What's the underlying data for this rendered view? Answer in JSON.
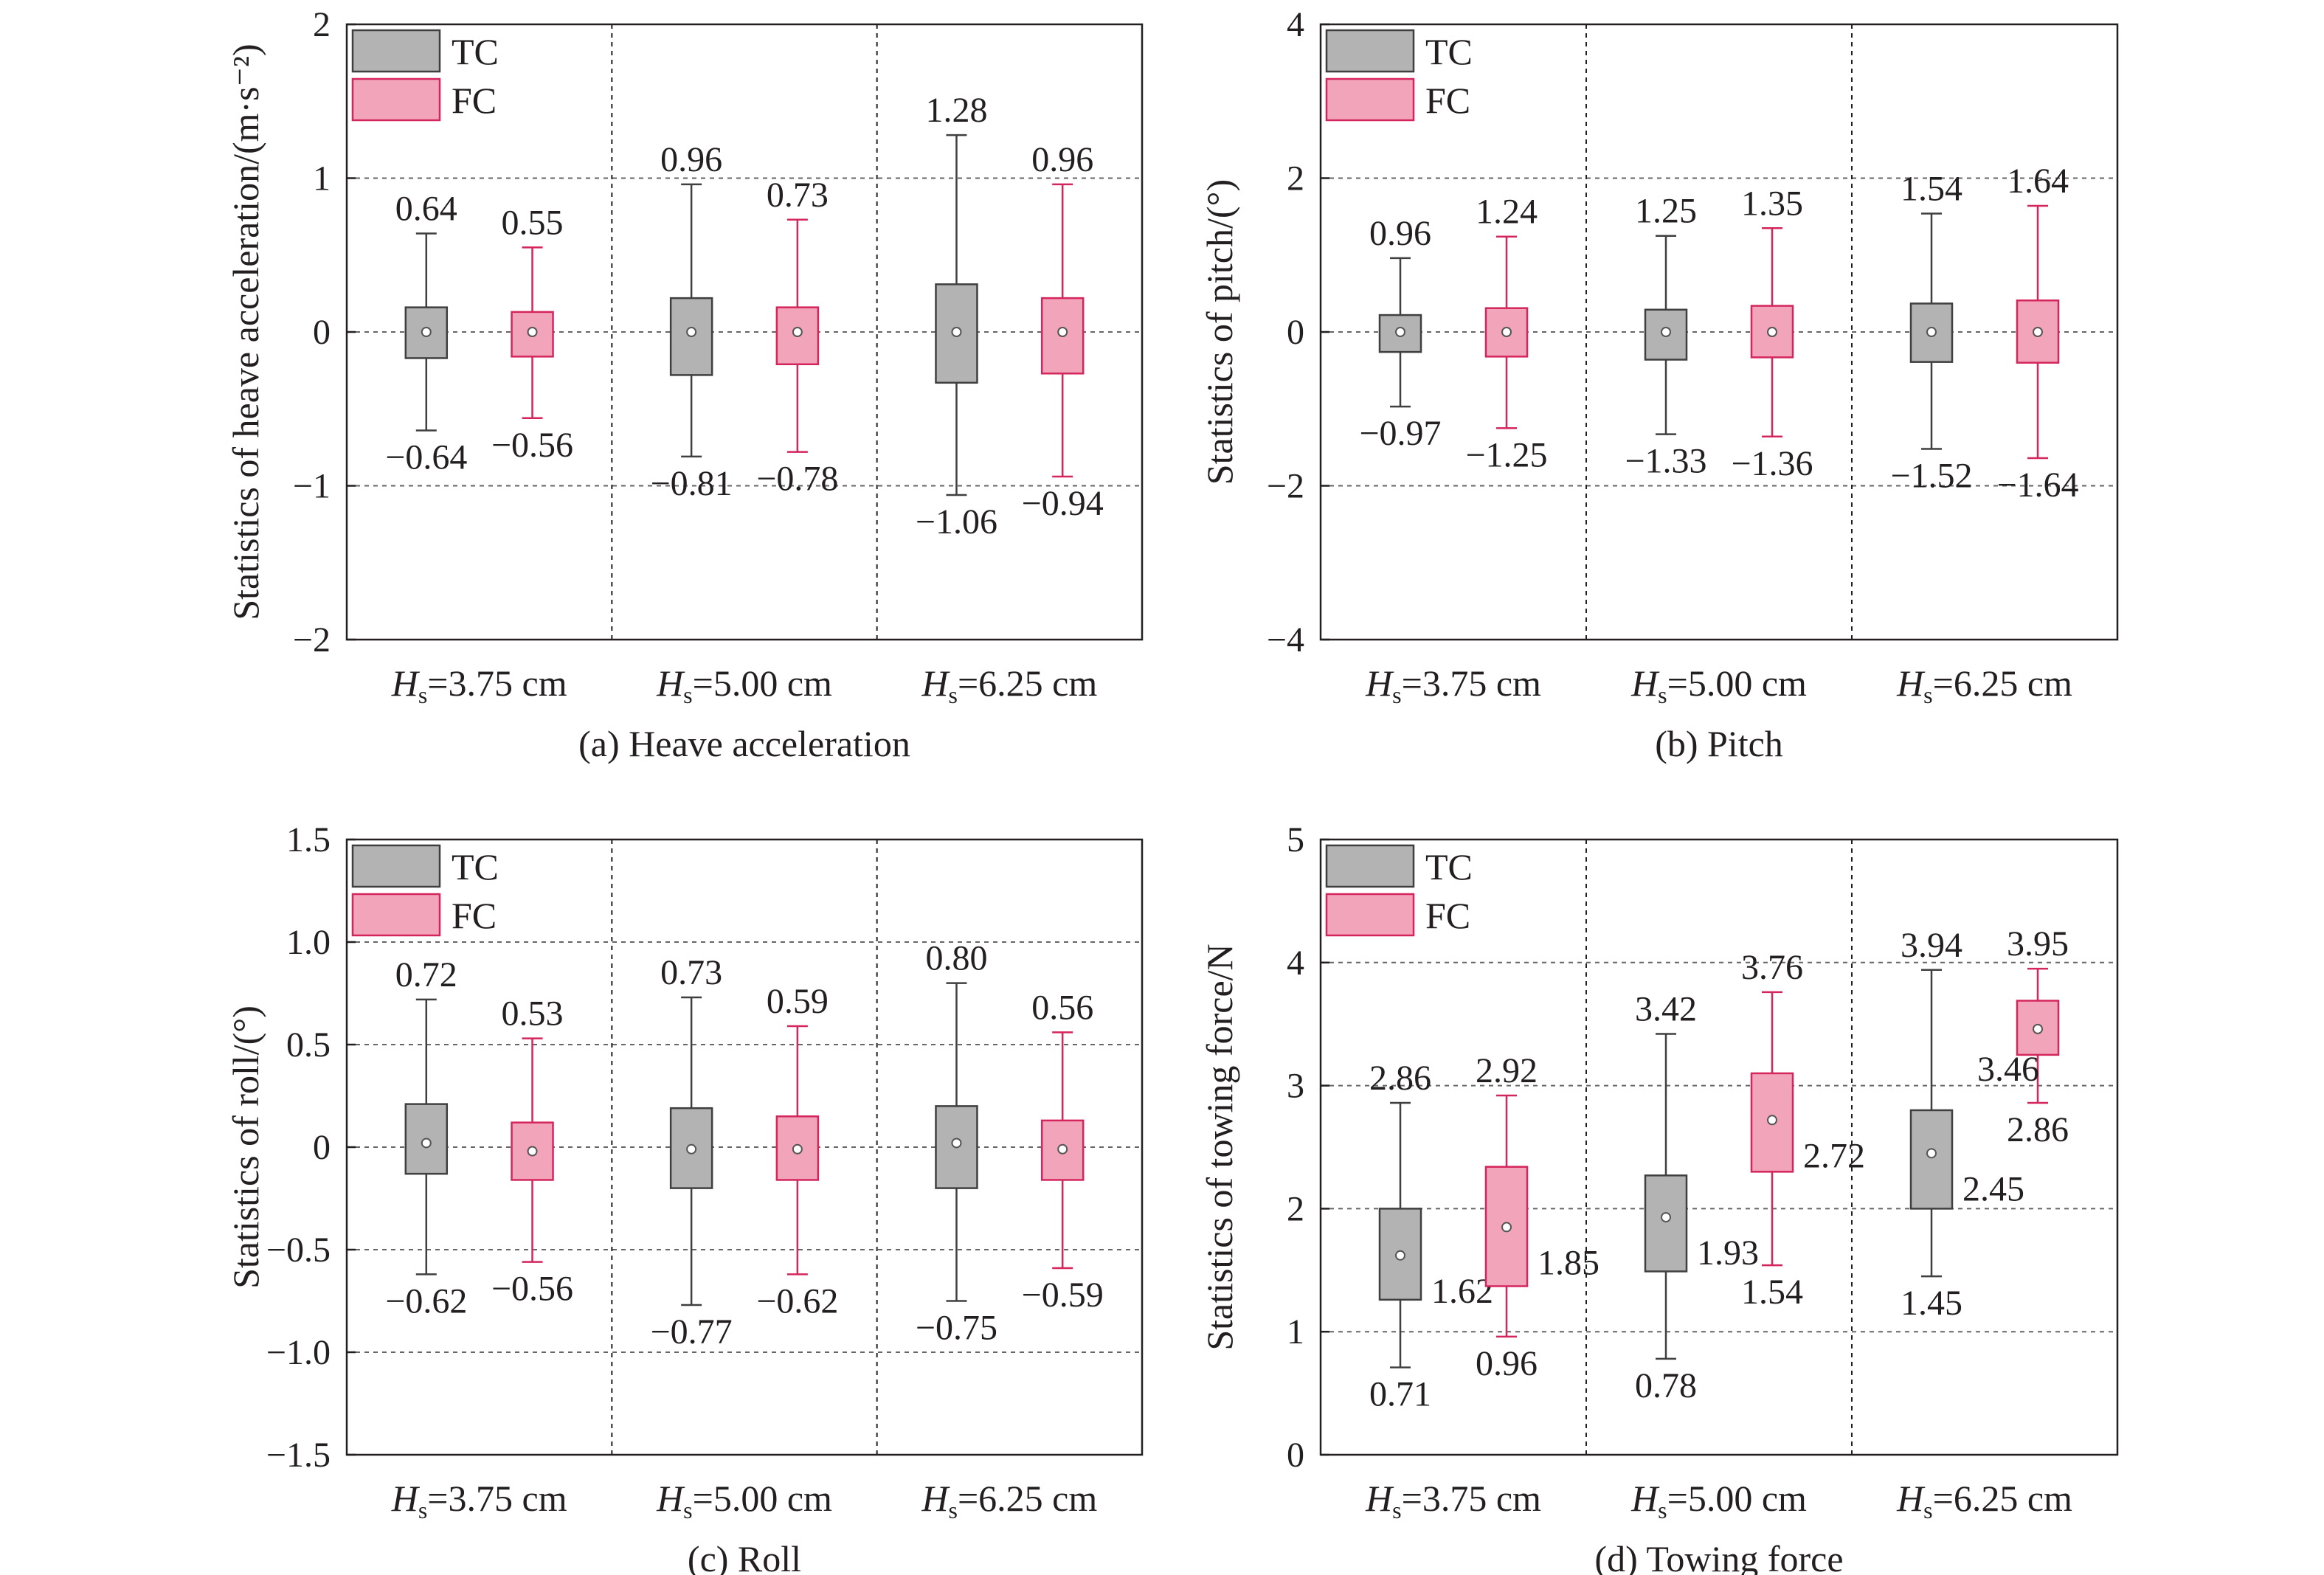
{
  "legend": {
    "tc": "TC",
    "fc": "FC"
  },
  "colors": {
    "tc_fill": "#b3b3b3",
    "tc_stroke": "#3f3f3f",
    "fc_fill": "#f2a4bb",
    "fc_stroke": "#d4255c",
    "axis": "#231f20"
  },
  "x_tick_labels": [
    {
      "main": "H",
      "sub": "s",
      "rest": "=3.75 cm"
    },
    {
      "main": "H",
      "sub": "s",
      "rest": "=5.00 cm"
    },
    {
      "main": "H",
      "sub": "s",
      "rest": "=6.25 cm"
    }
  ],
  "chart_data": [
    {
      "type": "box",
      "caption": "(a) Heave acceleration",
      "ylabel": "Statistics of heave acceleration/(m·s⁻²)",
      "ylim": [
        -2,
        2
      ],
      "yticks": [
        "2",
        "1",
        "0",
        "−1",
        "−2"
      ],
      "ytick_values": [
        2,
        1,
        0,
        -1,
        -2
      ],
      "grid": "dashed",
      "legend_position": "top-left",
      "categories": [
        "Hs=3.75 cm",
        "Hs=5.00 cm",
        "Hs=6.25 cm"
      ],
      "series": [
        {
          "name": "TC",
          "boxes": [
            {
              "min": -0.64,
              "q1": -0.17,
              "median": 0,
              "q3": 0.16,
              "max": 0.64,
              "mean": 0,
              "max_label": "0.64",
              "min_label": "−0.64"
            },
            {
              "min": -0.81,
              "q1": -0.28,
              "median": 0,
              "q3": 0.22,
              "max": 0.96,
              "mean": 0,
              "max_label": "0.96",
              "min_label": "−0.81"
            },
            {
              "min": -1.06,
              "q1": -0.33,
              "median": 0,
              "q3": 0.31,
              "max": 1.28,
              "mean": 0,
              "max_label": "1.28",
              "min_label": "−1.06"
            }
          ]
        },
        {
          "name": "FC",
          "boxes": [
            {
              "min": -0.56,
              "q1": -0.16,
              "median": 0,
              "q3": 0.13,
              "max": 0.55,
              "mean": 0,
              "max_label": "0.55",
              "min_label": "−0.56"
            },
            {
              "min": -0.78,
              "q1": -0.21,
              "median": 0,
              "q3": 0.16,
              "max": 0.73,
              "mean": 0,
              "max_label": "0.73",
              "min_label": "−0.78"
            },
            {
              "min": -0.94,
              "q1": -0.27,
              "median": 0,
              "q3": 0.22,
              "max": 0.96,
              "mean": 0,
              "max_label": "0.96",
              "min_label": "−0.94"
            }
          ]
        }
      ]
    },
    {
      "type": "box",
      "caption": "(b) Pitch",
      "ylabel": "Statistics of pitch/(°)",
      "ylim": [
        -4,
        4
      ],
      "yticks": [
        "4",
        "2",
        "0",
        "−2",
        "−4"
      ],
      "ytick_values": [
        4,
        2,
        0,
        -2,
        -4
      ],
      "grid": "dashed",
      "legend_position": "top-left",
      "categories": [
        "Hs=3.75 cm",
        "Hs=5.00 cm",
        "Hs=6.25 cm"
      ],
      "series": [
        {
          "name": "TC",
          "boxes": [
            {
              "min": -0.97,
              "q1": -0.26,
              "median": 0,
              "q3": 0.22,
              "max": 0.96,
              "mean": 0,
              "max_label": "0.96",
              "min_label": "−0.97"
            },
            {
              "min": -1.33,
              "q1": -0.36,
              "median": 0,
              "q3": 0.29,
              "max": 1.25,
              "mean": 0,
              "max_label": "1.25",
              "min_label": "−1.33"
            },
            {
              "min": -1.52,
              "q1": -0.39,
              "median": 0,
              "q3": 0.37,
              "max": 1.54,
              "mean": 0,
              "max_label": "1.54",
              "min_label": "−1.52"
            }
          ]
        },
        {
          "name": "FC",
          "boxes": [
            {
              "min": -1.25,
              "q1": -0.32,
              "median": 0,
              "q3": 0.31,
              "max": 1.24,
              "mean": 0,
              "max_label": "1.24",
              "min_label": "−1.25"
            },
            {
              "min": -1.36,
              "q1": -0.33,
              "median": 0,
              "q3": 0.34,
              "max": 1.35,
              "mean": 0,
              "max_label": "1.35",
              "min_label": "−1.36"
            },
            {
              "min": -1.64,
              "q1": -0.4,
              "median": 0,
              "q3": 0.41,
              "max": 1.64,
              "mean": 0,
              "max_label": "1.64",
              "min_label": "−1.64"
            }
          ]
        }
      ]
    },
    {
      "type": "box",
      "caption": "(c) Roll",
      "ylabel": "Statistics of roll/(°)",
      "ylim": [
        -1.5,
        1.5
      ],
      "yticks": [
        "1.5",
        "1.0",
        "0.5",
        "0",
        "−0.5",
        "−1.0",
        "−1.5"
      ],
      "ytick_values": [
        1.5,
        1.0,
        0.5,
        0,
        -0.5,
        -1.0,
        -1.5
      ],
      "grid": "dashed",
      "legend_position": "top-left",
      "categories": [
        "Hs=3.75 cm",
        "Hs=5.00 cm",
        "Hs=6.25 cm"
      ],
      "series": [
        {
          "name": "TC",
          "boxes": [
            {
              "min": -0.62,
              "q1": -0.13,
              "median": 0,
              "q3": 0.21,
              "max": 0.72,
              "mean": 0.02,
              "max_label": "0.72",
              "min_label": "−0.62"
            },
            {
              "min": -0.77,
              "q1": -0.2,
              "median": 0,
              "q3": 0.19,
              "max": 0.73,
              "mean": -0.01,
              "max_label": "0.73",
              "min_label": "−0.77"
            },
            {
              "min": -0.75,
              "q1": -0.2,
              "median": 0,
              "q3": 0.2,
              "max": 0.8,
              "mean": 0.02,
              "max_label": "0.80",
              "min_label": "−0.75"
            }
          ]
        },
        {
          "name": "FC",
          "boxes": [
            {
              "min": -0.56,
              "q1": -0.16,
              "median": 0,
              "q3": 0.12,
              "max": 0.53,
              "mean": -0.02,
              "max_label": "0.53",
              "min_label": "−0.56"
            },
            {
              "min": -0.62,
              "q1": -0.16,
              "median": 0,
              "q3": 0.15,
              "max": 0.59,
              "mean": -0.01,
              "max_label": "0.59",
              "min_label": "−0.62"
            },
            {
              "min": -0.59,
              "q1": -0.16,
              "median": 0,
              "q3": 0.13,
              "max": 0.56,
              "mean": -0.01,
              "max_label": "0.56",
              "min_label": "−0.59"
            }
          ]
        }
      ]
    },
    {
      "type": "box",
      "caption": "(d) Towing force",
      "ylabel": "Statistics of towing force/N",
      "ylim": [
        0,
        5
      ],
      "yticks": [
        "5",
        "4",
        "3",
        "2",
        "1",
        "0"
      ],
      "ytick_values": [
        5,
        4,
        3,
        2,
        1,
        0
      ],
      "grid": "dashed",
      "legend_position": "top-left",
      "categories": [
        "Hs=3.75 cm",
        "Hs=5.00 cm",
        "Hs=6.25 cm"
      ],
      "series": [
        {
          "name": "TC",
          "boxes": [
            {
              "min": 0.71,
              "q1": 1.26,
              "median": 1.62,
              "q3": 2.0,
              "max": 2.86,
              "mean": 1.62,
              "max_label": "2.86",
              "min_label": "0.71",
              "mean_label": "1.62"
            },
            {
              "min": 0.78,
              "q1": 1.49,
              "median": 1.93,
              "q3": 2.27,
              "max": 3.42,
              "mean": 1.93,
              "max_label": "3.42",
              "min_label": "0.78",
              "mean_label": "1.93"
            },
            {
              "min": 1.45,
              "q1": 2.0,
              "median": 2.45,
              "q3": 2.8,
              "max": 3.94,
              "mean": 2.45,
              "max_label": "3.94",
              "min_label": "1.45",
              "mean_label": "2.45"
            }
          ]
        },
        {
          "name": "FC",
          "boxes": [
            {
              "min": 0.96,
              "q1": 1.37,
              "median": 1.85,
              "q3": 2.34,
              "max": 2.92,
              "mean": 1.85,
              "max_label": "2.92",
              "min_label": "0.96",
              "mean_label": "1.85"
            },
            {
              "min": 1.54,
              "q1": 2.3,
              "median": 2.72,
              "q3": 3.1,
              "max": 3.76,
              "mean": 2.72,
              "max_label": "3.76",
              "min_label": "1.54",
              "mean_label": "2.72"
            },
            {
              "min": 2.86,
              "q1": 3.25,
              "median": 3.46,
              "q3": 3.69,
              "max": 3.95,
              "mean": 3.46,
              "max_label": "3.95",
              "min_label": "2.86",
              "mean_label": "3.46"
            }
          ]
        }
      ]
    }
  ]
}
